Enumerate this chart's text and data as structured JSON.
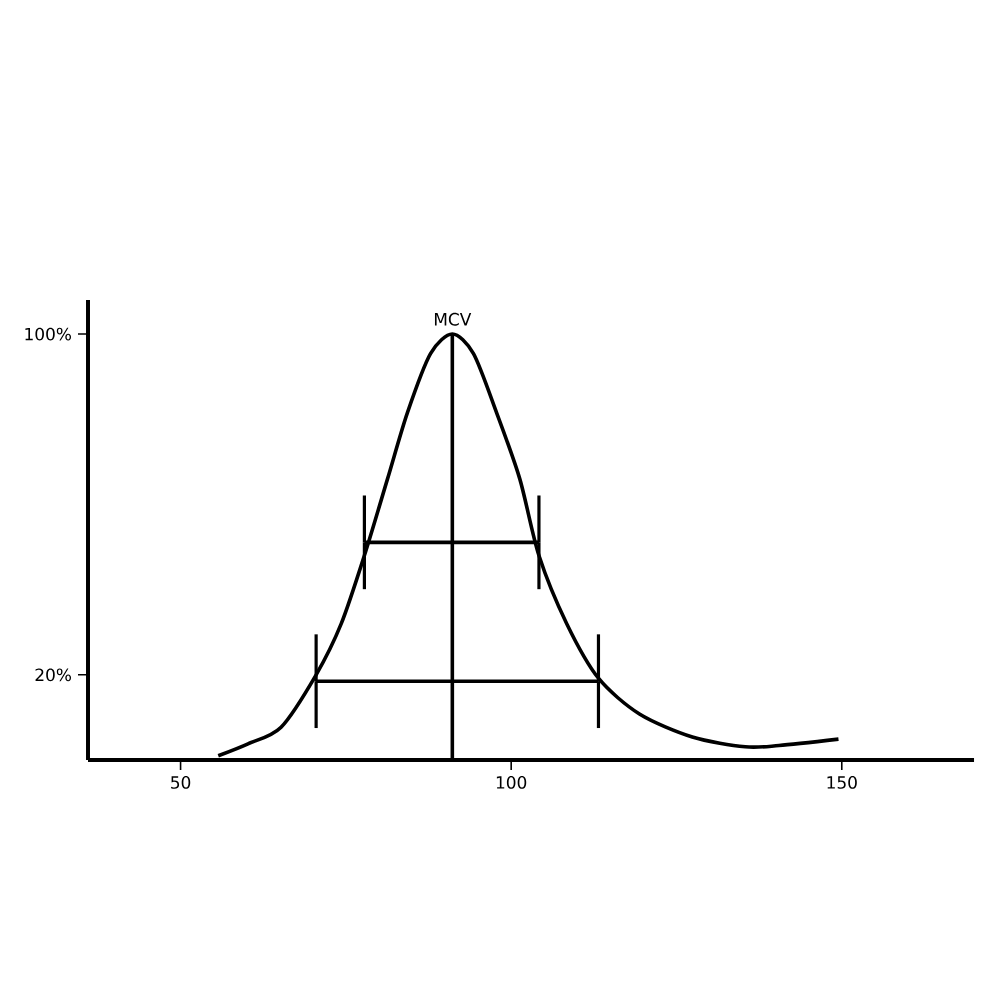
{
  "chart_data": {
    "type": "line",
    "xlim": [
      36,
      170
    ],
    "ylim": [
      0,
      108
    ],
    "xticks": [
      50,
      100,
      150
    ],
    "yticks": [
      {
        "value": 20,
        "label": "20%"
      },
      {
        "value": 100,
        "label": "100%"
      }
    ],
    "series": [
      {
        "color": "#000000",
        "x": [
          55.7,
          60.2,
          65.2,
          70.5,
          74.3,
          77.8,
          81.3,
          84.3,
          87.8,
          91.1,
          94.3,
          97.8,
          101.3,
          104.2,
          108.4,
          113.2,
          119.4,
          127.4,
          135.4,
          140.5,
          149.5
        ],
        "values": [
          1,
          3.8,
          7.7,
          20,
          32,
          48,
          66,
          81.5,
          95.4,
          100,
          95.4,
          81.5,
          66,
          48,
          32,
          19.2,
          10.8,
          5.4,
          3.1,
          3.4,
          4.9
        ]
      },
      {
        "color": "#000000",
        "x": [
          91.1,
          91.1
        ],
        "values": [
          0,
          100
        ]
      },
      {
        "color": "#000000",
        "x": [
          77.8,
          104.2
        ],
        "values": [
          51.1,
          51.1
        ],
        "errors": [
          11,
          11
        ]
      },
      {
        "color": "#000000",
        "x": [
          70.5,
          113.2
        ],
        "values": [
          18.5,
          18.5
        ],
        "errors": [
          11,
          11
        ]
      }
    ],
    "annotations": [
      {
        "text": "MCV",
        "x": 91.1,
        "y": 100
      }
    ],
    "marker": "none",
    "line_style": "solid"
  }
}
